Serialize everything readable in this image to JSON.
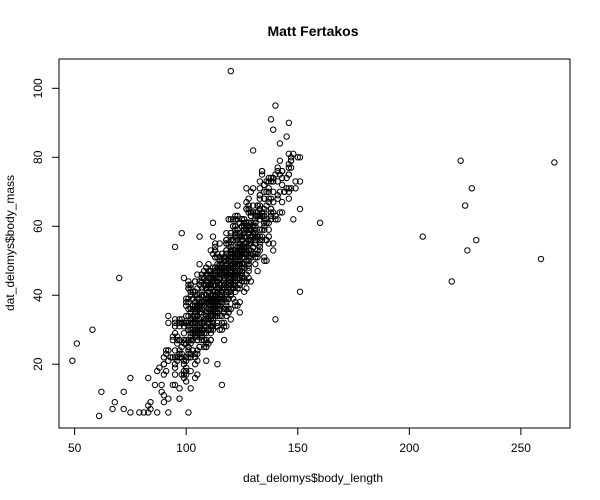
{
  "chart_data": {
    "type": "scatter",
    "title": "Matt Fertakos",
    "xlabel": "dat_delomys$body_length",
    "ylabel": "dat_delomys$body_mass",
    "xlim": [
      43,
      272
    ],
    "ylim": [
      1.5,
      108.5
    ],
    "xticks": [
      50,
      100,
      150,
      200,
      250
    ],
    "yticks": [
      20,
      40,
      60,
      80,
      100
    ],
    "grid": false,
    "marker": "open-circle",
    "outliers": [
      [
        49,
        21
      ],
      [
        51,
        26
      ],
      [
        58,
        30
      ],
      [
        62,
        12
      ],
      [
        61,
        5
      ],
      [
        70,
        45
      ],
      [
        120,
        105
      ],
      [
        116,
        14
      ],
      [
        151,
        41
      ],
      [
        160,
        61
      ],
      [
        206,
        57
      ],
      [
        219,
        44
      ],
      [
        223,
        79
      ],
      [
        225,
        66
      ],
      [
        226,
        53
      ],
      [
        228,
        71
      ],
      [
        230,
        56
      ],
      [
        259,
        50.5
      ],
      [
        265,
        78.5
      ],
      [
        140,
        95
      ],
      [
        138,
        91
      ],
      [
        146,
        90
      ],
      [
        150,
        80
      ],
      [
        140,
        33
      ],
      [
        67,
        7
      ],
      [
        68,
        9
      ],
      [
        72,
        12
      ],
      [
        95,
        54
      ],
      [
        98,
        58
      ]
    ],
    "cloud": {
      "n": 1100,
      "x_mean": 117,
      "x_sd": 13,
      "y_slope": 1.0,
      "y_intercept": -72,
      "y_sd": 6.5,
      "seed": 7
    }
  }
}
